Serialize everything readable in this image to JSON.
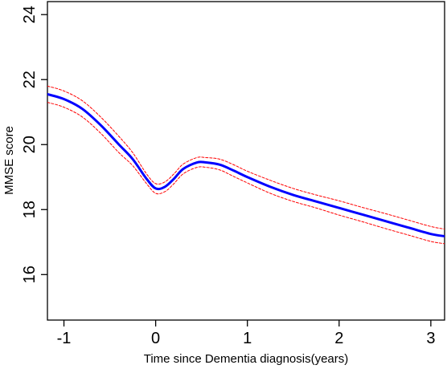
{
  "chart_data": {
    "type": "line",
    "title": "",
    "xlabel": "Time since Dementia diagnosis(years)",
    "ylabel": "MMSE score",
    "xlim": [
      -1.18,
      3.15
    ],
    "ylim": [
      14.6,
      24.4
    ],
    "x_ticks": [
      "-1",
      "0",
      "1",
      "2",
      "3"
    ],
    "y_ticks": [
      "16",
      "18",
      "20",
      "22",
      "24"
    ],
    "grid": false,
    "legend": "none",
    "colors": {
      "fit": "#0000ff",
      "ci": "#ff0000"
    },
    "x": [
      -1.18,
      -1.0,
      -0.8,
      -0.6,
      -0.4,
      -0.25,
      -0.1,
      0.0,
      0.1,
      0.2,
      0.3,
      0.45,
      0.55,
      0.7,
      0.85,
      1.0,
      1.25,
      1.5,
      1.75,
      2.0,
      2.25,
      2.5,
      2.75,
      3.0,
      3.15
    ],
    "series": [
      {
        "values": [
          21.55,
          21.4,
          21.1,
          20.6,
          20.0,
          19.55,
          18.95,
          18.65,
          18.7,
          18.95,
          19.25,
          19.45,
          19.45,
          19.38,
          19.2,
          19.0,
          18.7,
          18.45,
          18.25,
          18.05,
          17.85,
          17.65,
          17.45,
          17.25,
          17.18
        ]
      },
      {
        "values": [
          21.8,
          21.65,
          21.35,
          20.85,
          20.25,
          19.75,
          19.1,
          18.8,
          18.85,
          19.1,
          19.4,
          19.6,
          19.6,
          19.55,
          19.38,
          19.18,
          18.9,
          18.65,
          18.45,
          18.27,
          18.07,
          17.88,
          17.68,
          17.48,
          17.4
        ]
      },
      {
        "values": [
          21.3,
          21.15,
          20.85,
          20.35,
          19.75,
          19.35,
          18.8,
          18.5,
          18.55,
          18.8,
          19.1,
          19.3,
          19.3,
          19.22,
          19.02,
          18.82,
          18.5,
          18.25,
          18.05,
          17.83,
          17.63,
          17.42,
          17.22,
          17.02,
          16.95
        ]
      }
    ]
  }
}
